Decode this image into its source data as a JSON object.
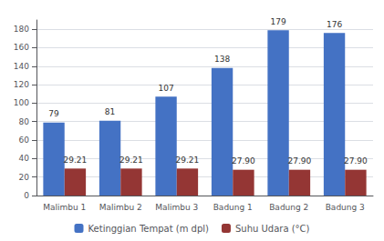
{
  "chart_data": {
    "type": "bar",
    "categories": [
      "Malimbu 1",
      "Malimbu 2",
      "Malimbu 3",
      "Badung 1",
      "Badung 2",
      "Badung 3"
    ],
    "series": [
      {
        "name": "Ketinggian Tempat (m dpl)",
        "color": "#4472C4",
        "values": [
          79,
          81,
          107,
          138,
          179,
          176
        ]
      },
      {
        "name": "Suhu Udara (°C)",
        "color": "#943634",
        "values": [
          29.21,
          29.21,
          29.21,
          27.9,
          27.9,
          27.9
        ],
        "value_labels": [
          "29.21",
          "29.21",
          "29.21",
          "27.90",
          "27.90",
          "27.90"
        ]
      }
    ],
    "ylim": [
      0,
      190
    ],
    "yticks": [
      0,
      20,
      40,
      60,
      80,
      100,
      120,
      140,
      160,
      180
    ],
    "grid": true,
    "legend": "bottom",
    "data_labels": true
  }
}
